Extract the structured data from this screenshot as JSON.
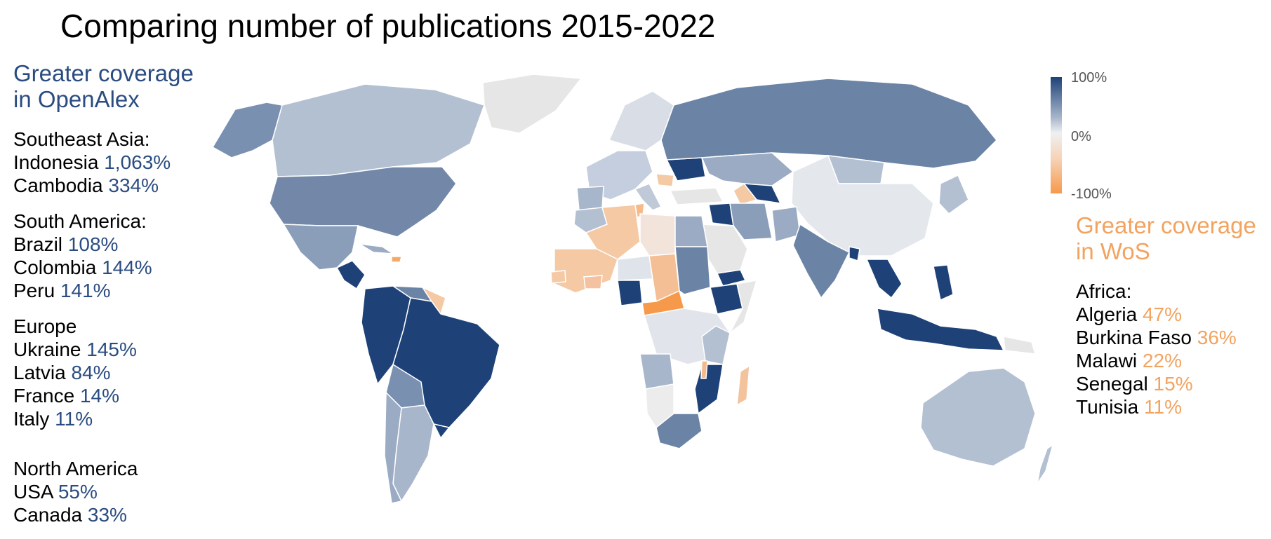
{
  "title": "Comparing number of publications 2015-2022",
  "colors": {
    "openalex_strong": "#1e4278",
    "openalex_mid": "#6b84a6",
    "openalex_light": "#b3c0d2",
    "neutral": "#e6e6e6",
    "wos_light": "#f4c9a4",
    "wos_strong": "#f6994a",
    "heading_blue": "#2a4c80",
    "heading_orange": "#f2a35f"
  },
  "left_panel": {
    "heading_line1": "Greater coverage",
    "heading_line2": "in OpenAlex",
    "groups": [
      {
        "title": "Southeast Asia:",
        "items": [
          {
            "name": "Indonesia",
            "value": "1,063%"
          },
          {
            "name": "Cambodia",
            "value": "334%"
          }
        ]
      },
      {
        "title": "South America:",
        "items": [
          {
            "name": "Brazil",
            "value": "108%"
          },
          {
            "name": "Colombia",
            "value": "144%"
          },
          {
            "name": "Peru",
            "value": "141%"
          }
        ]
      },
      {
        "title": "Europe",
        "items": [
          {
            "name": "Ukraine",
            "value": "145%"
          },
          {
            "name": "Latvia",
            "value": "84%"
          },
          {
            "name": "France",
            "value": "14%"
          },
          {
            "name": "Italy",
            "value": "11%"
          }
        ]
      },
      {
        "title": "North America",
        "items": [
          {
            "name": "USA",
            "value": "55%"
          },
          {
            "name": "Canada",
            "value": "33%"
          }
        ]
      }
    ]
  },
  "right_panel": {
    "heading_line1": "Greater coverage",
    "heading_line2": "in WoS",
    "groups": [
      {
        "title": "Africa:",
        "items": [
          {
            "name": "Algeria",
            "value": "47%"
          },
          {
            "name": "Burkina Faso",
            "value": "36%"
          },
          {
            "name": "Malawi",
            "value": "22%"
          },
          {
            "name": "Senegal",
            "value": "15%"
          },
          {
            "name": "Tunisia",
            "value": "11%"
          }
        ]
      }
    ]
  },
  "legend": {
    "max_label": "100%",
    "mid_label": "0%",
    "min_label": "-100%"
  }
}
